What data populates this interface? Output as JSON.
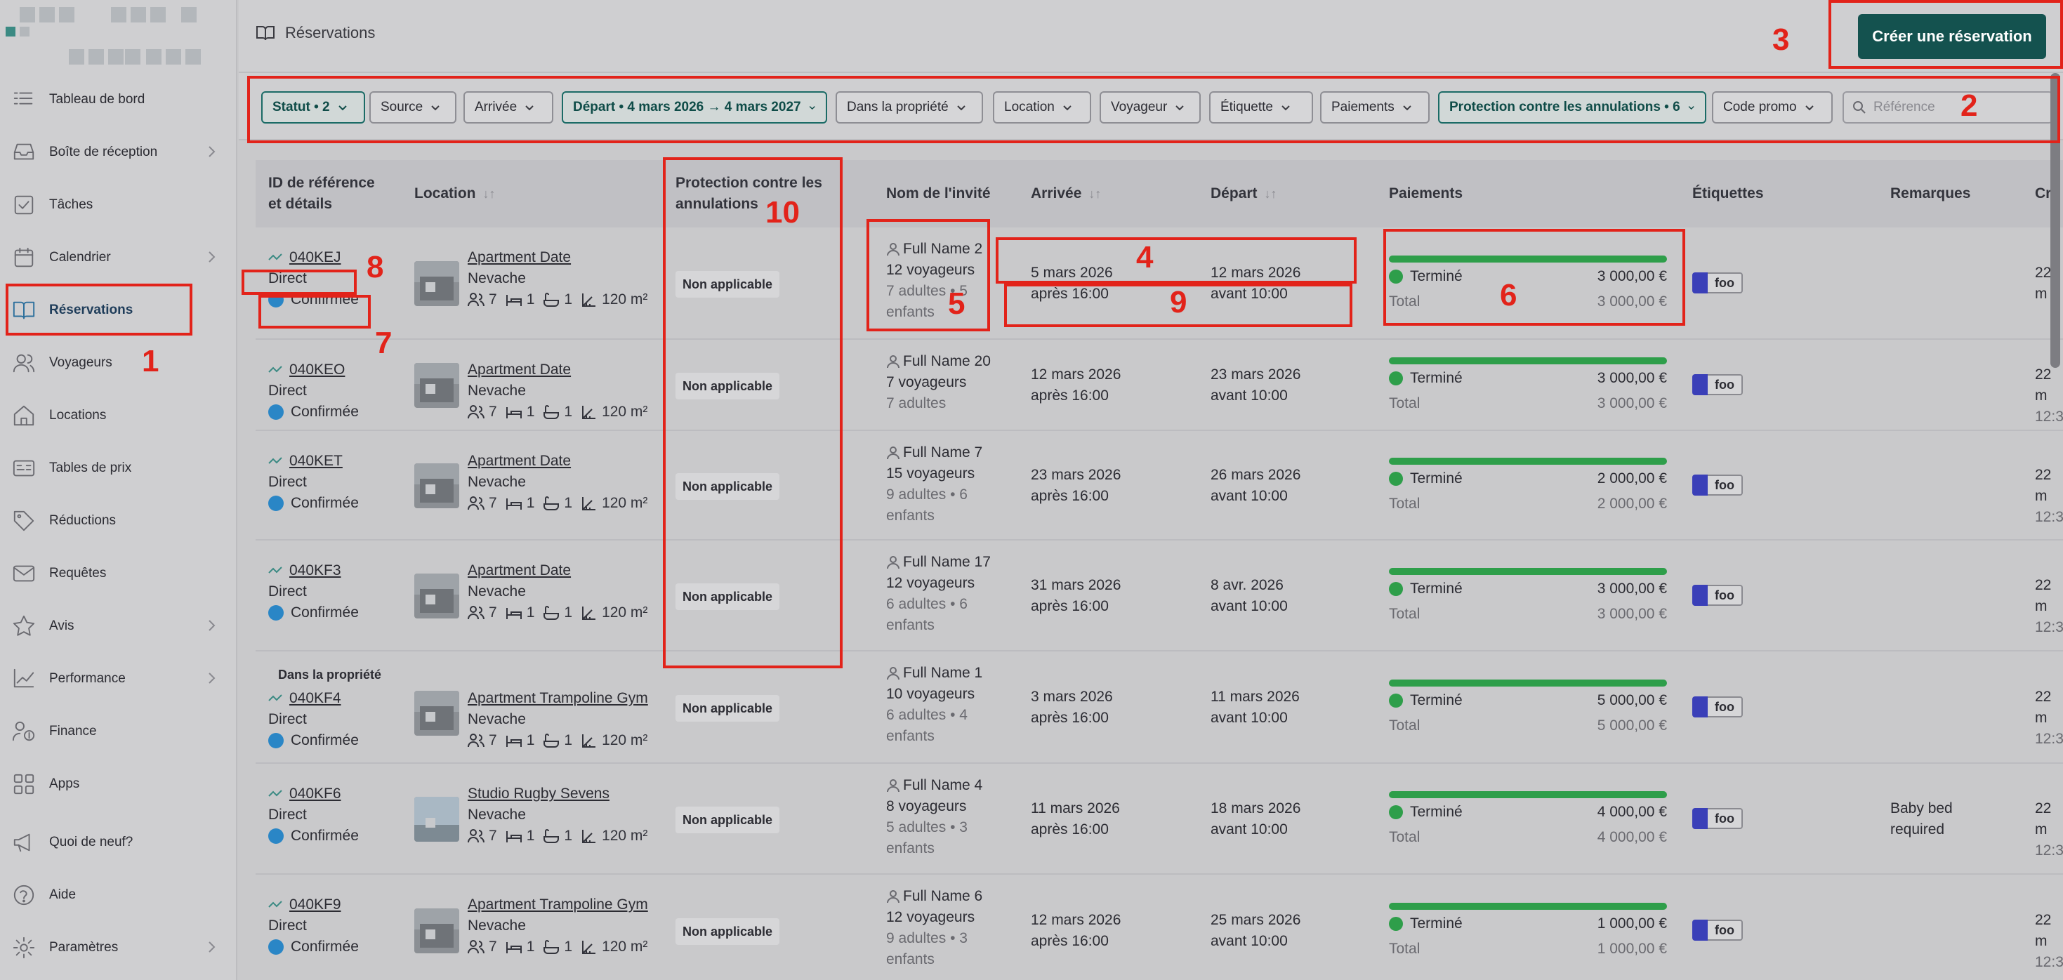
{
  "sidebar": {
    "items": [
      {
        "label": "Tableau de bord",
        "icon": "dashboard-icon"
      },
      {
        "label": "Boîte de réception",
        "icon": "inbox-icon",
        "chevron": true
      },
      {
        "label": "Tâches",
        "icon": "tasks-icon"
      },
      {
        "label": "Calendrier",
        "icon": "calendar-icon",
        "chevron": true
      },
      {
        "label": "Réservations",
        "icon": "book-icon",
        "active": true
      },
      {
        "label": "Voyageurs",
        "icon": "users-icon"
      },
      {
        "label": "Locations",
        "icon": "home-icon"
      },
      {
        "label": "Tables de prix",
        "icon": "price-table-icon"
      },
      {
        "label": "Réductions",
        "icon": "tag-icon"
      },
      {
        "label": "Requêtes",
        "icon": "mail-icon"
      },
      {
        "label": "Avis",
        "icon": "star-icon",
        "chevron": true
      },
      {
        "label": "Performance",
        "icon": "chart-icon",
        "chevron": true
      },
      {
        "label": "Finance",
        "icon": "finance-icon"
      },
      {
        "label": "Apps",
        "icon": "apps-icon"
      },
      {
        "label": "Quoi de neuf?",
        "icon": "megaphone-icon"
      },
      {
        "label": "Aide",
        "icon": "help-icon"
      },
      {
        "label": "Paramètres",
        "icon": "settings-icon",
        "chevron": true
      }
    ]
  },
  "header": {
    "breadcrumb": "Réservations",
    "create_button": "Créer une réservation"
  },
  "filters": {
    "chips": [
      {
        "label": "Statut • 2",
        "active": true
      },
      {
        "label": "Source",
        "active": false
      },
      {
        "label": "Arrivée",
        "active": false
      },
      {
        "label": "Départ • 4 mars 2026 → 4 mars 2027",
        "active": true
      },
      {
        "label": "Dans la propriété",
        "active": false
      },
      {
        "label": "Location",
        "active": false
      },
      {
        "label": "Voyageur",
        "active": false
      },
      {
        "label": "Étiquette",
        "active": false
      },
      {
        "label": "Paiements",
        "active": false
      },
      {
        "label": "Protection contre les annulations • 6",
        "active": true
      },
      {
        "label": "Code promo",
        "active": false
      }
    ],
    "search_placeholder": "Référence"
  },
  "table": {
    "headers": {
      "ref_line1": "ID de référence",
      "ref_line2": "et détails",
      "location": "Location",
      "protection_line1": "Protection contre les",
      "protection_line2": "annulations",
      "guest": "Nom de l'invité",
      "arrival": "Arrivée",
      "departure": "Départ",
      "payments": "Paiements",
      "tags": "Étiquettes",
      "notes": "Remarques",
      "created": "Cré"
    },
    "rows": [
      {
        "ref": "040KEJ",
        "source": "Direct",
        "status": "Confirmée",
        "in_property": "",
        "location": "Apartment Date",
        "city": "Nevache",
        "guests_cap": "7",
        "bedrooms": "1",
        "baths": "1",
        "area": "120 m²",
        "protection": "Non applicable",
        "guest_name": "Full Name 2",
        "travelers": "12 voyageurs",
        "composition1": "7 adultes • 5",
        "composition2": "enfants",
        "arr_date": "5 mars 2026",
        "arr_time": "après 16:00",
        "dep_date": "12 mars 2026",
        "dep_time": "avant 10:00",
        "pay_status": "Terminé",
        "pay_amount": "3 000,00 €",
        "total_label": "Total",
        "total_amount": "3 000,00 €",
        "tag": "foo",
        "notes1": "",
        "notes2": "",
        "created1": "22 m",
        "created2": ""
      },
      {
        "ref": "040KEO",
        "source": "Direct",
        "status": "Confirmée",
        "in_property": "",
        "location": "Apartment Date",
        "city": "Nevache",
        "guests_cap": "7",
        "bedrooms": "1",
        "baths": "1",
        "area": "120 m²",
        "protection": "Non applicable",
        "guest_name": "Full Name 20",
        "travelers": "7 voyageurs",
        "composition1": "7 adultes",
        "composition2": "",
        "arr_date": "12 mars 2026",
        "arr_time": "après 16:00",
        "dep_date": "23 mars 2026",
        "dep_time": "avant 10:00",
        "pay_status": "Terminé",
        "pay_amount": "3 000,00 €",
        "total_label": "Total",
        "total_amount": "3 000,00 €",
        "tag": "foo",
        "notes1": "",
        "notes2": "",
        "created1": "22 m",
        "created2": "12:3"
      },
      {
        "ref": "040KET",
        "source": "Direct",
        "status": "Confirmée",
        "in_property": "",
        "location": "Apartment Date",
        "city": "Nevache",
        "guests_cap": "7",
        "bedrooms": "1",
        "baths": "1",
        "area": "120 m²",
        "protection": "Non applicable",
        "guest_name": "Full Name 7",
        "travelers": "15 voyageurs",
        "composition1": "9 adultes • 6",
        "composition2": "enfants",
        "arr_date": "23 mars 2026",
        "arr_time": "après 16:00",
        "dep_date": "26 mars 2026",
        "dep_time": "avant 10:00",
        "pay_status": "Terminé",
        "pay_amount": "2 000,00 €",
        "total_label": "Total",
        "total_amount": "2 000,00 €",
        "tag": "foo",
        "notes1": "",
        "notes2": "",
        "created1": "22 m",
        "created2": "12:3"
      },
      {
        "ref": "040KF3",
        "source": "Direct",
        "status": "Confirmée",
        "in_property": "",
        "location": "Apartment Date",
        "city": "Nevache",
        "guests_cap": "7",
        "bedrooms": "1",
        "baths": "1",
        "area": "120 m²",
        "protection": "Non applicable",
        "guest_name": "Full Name 17",
        "travelers": "12 voyageurs",
        "composition1": "6 adultes • 6",
        "composition2": "enfants",
        "arr_date": "31 mars 2026",
        "arr_time": "après 16:00",
        "dep_date": "8 avr. 2026",
        "dep_time": "avant 10:00",
        "pay_status": "Terminé",
        "pay_amount": "3 000,00 €",
        "total_label": "Total",
        "total_amount": "3 000,00 €",
        "tag": "foo",
        "notes1": "",
        "notes2": "",
        "created1": "22 m",
        "created2": "12:3"
      },
      {
        "ref": "040KF4",
        "source": "Direct",
        "status": "Confirmée",
        "in_property": "Dans la propriété",
        "location": "Apartment Trampoline Gym",
        "city": "Nevache",
        "guests_cap": "7",
        "bedrooms": "1",
        "baths": "1",
        "area": "120 m²",
        "protection": "Non applicable",
        "guest_name": "Full Name 1",
        "travelers": "10 voyageurs",
        "composition1": "6 adultes • 4",
        "composition2": "enfants",
        "arr_date": "3 mars 2026",
        "arr_time": "après 16:00",
        "dep_date": "11 mars 2026",
        "dep_time": "avant 10:00",
        "pay_status": "Terminé",
        "pay_amount": "5 000,00 €",
        "total_label": "Total",
        "total_amount": "5 000,00 €",
        "tag": "foo",
        "notes1": "",
        "notes2": "",
        "created1": "22 m",
        "created2": "12:3"
      },
      {
        "ref": "040KF6",
        "source": "Direct",
        "status": "Confirmée",
        "in_property": "",
        "location": "Studio Rugby Sevens",
        "city": "Nevache",
        "guests_cap": "7",
        "bedrooms": "1",
        "baths": "1",
        "area": "120 m²",
        "protection": "Non applicable",
        "guest_name": "Full Name 4",
        "travelers": "8 voyageurs",
        "composition1": "5 adultes • 3",
        "composition2": "enfants",
        "arr_date": "11 mars 2026",
        "arr_time": "après 16:00",
        "dep_date": "18 mars 2026",
        "dep_time": "avant 10:00",
        "pay_status": "Terminé",
        "pay_amount": "4 000,00 €",
        "total_label": "Total",
        "total_amount": "4 000,00 €",
        "tag": "foo",
        "notes1": "Baby bed",
        "notes2": "required",
        "created1": "22 m",
        "created2": "12:3"
      },
      {
        "ref": "040KF9",
        "source": "Direct",
        "status": "Confirmée",
        "in_property": "",
        "location": "Apartment Trampoline Gym",
        "city": "Nevache",
        "guests_cap": "7",
        "bedrooms": "1",
        "baths": "1",
        "area": "120 m²",
        "protection": "Non applicable",
        "guest_name": "Full Name 6",
        "travelers": "12 voyageurs",
        "composition1": "9 adultes • 3",
        "composition2": "enfants",
        "arr_date": "12 mars 2026",
        "arr_time": "après 16:00",
        "dep_date": "25 mars 2026",
        "dep_time": "avant 10:00",
        "pay_status": "Terminé",
        "pay_amount": "1 000,00 €",
        "total_label": "Total",
        "total_amount": "1 000,00 €",
        "tag": "foo",
        "notes1": "",
        "notes2": "",
        "created1": "22 m",
        "created2": "12:3"
      }
    ]
  },
  "annotations": [
    "1",
    "2",
    "3",
    "4",
    "5",
    "6",
    "7",
    "8",
    "9",
    "10"
  ],
  "colors": {
    "accent": "#14524f",
    "annotation": "#e2231a",
    "status_blue": "#2a86c6",
    "paid_green": "#2e9e4a",
    "tag_swatch": "#3a3fb8"
  }
}
